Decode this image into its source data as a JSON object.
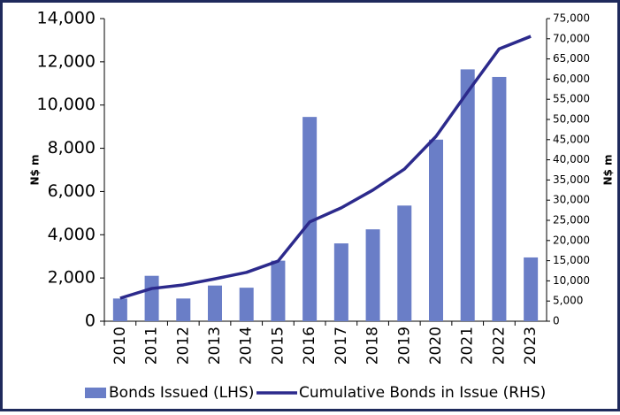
{
  "chart_data": {
    "type": "bar-line",
    "y_label": "N$ m",
    "y2_label": "N$ m",
    "categories": [
      "2010",
      "2011",
      "2012",
      "2013",
      "2014",
      "2015",
      "2016",
      "2017",
      "2018",
      "2019",
      "2020",
      "2021",
      "2022",
      "2023"
    ],
    "series": [
      {
        "name": "Bonds Issued (LHS)",
        "type": "bar",
        "color": "#6a7ec7",
        "values": [
          1050,
          2100,
          1050,
          1650,
          1550,
          2800,
          9450,
          3600,
          4250,
          5350,
          8400,
          11650,
          11300,
          2950
        ]
      },
      {
        "name": "Cumulative Bonds in Issue (RHS)",
        "type": "line",
        "axis": "y2",
        "color": "#2c2a8c",
        "values": [
          5700,
          8100,
          9000,
          10500,
          12100,
          14900,
          24600,
          28100,
          32500,
          37700,
          45800,
          56800,
          67500,
          70600
        ]
      }
    ],
    "ylim": [
      0,
      14000
    ],
    "yticks": [
      0,
      {
        "value": 2000,
        "label": "2,000"
      },
      {
        "value": 4000,
        "label": "4,000"
      },
      {
        "value": 6000,
        "label": "6,000"
      },
      {
        "value": 8000,
        "label": "8,000"
      },
      {
        "value": 10000,
        "label": "10,000"
      },
      {
        "value": 12000,
        "label": "12,000"
      },
      {
        "value": 14000,
        "label": "14,000"
      }
    ],
    "y2lim": [
      0,
      75000
    ],
    "y2ticks": [
      0,
      {
        "value": 5000,
        "label": "5,000"
      },
      {
        "value": 10000,
        "label": "10,000"
      },
      {
        "value": 15000,
        "label": "15,000"
      },
      {
        "value": 20000,
        "label": "20,000"
      },
      {
        "value": 25000,
        "label": "25,000"
      },
      {
        "value": 30000,
        "label": "30,000"
      },
      {
        "value": 35000,
        "label": "35,000"
      },
      {
        "value": 40000,
        "label": "40,000"
      },
      {
        "value": 45000,
        "label": "45,000"
      },
      {
        "value": 50000,
        "label": "50,000"
      },
      {
        "value": 55000,
        "label": "55,000"
      },
      {
        "value": 60000,
        "label": "60,000"
      },
      {
        "value": 65000,
        "label": "65,000"
      },
      {
        "value": 70000,
        "label": "70,000"
      },
      {
        "value": 75000,
        "label": "75,000"
      }
    ],
    "grid": false
  }
}
